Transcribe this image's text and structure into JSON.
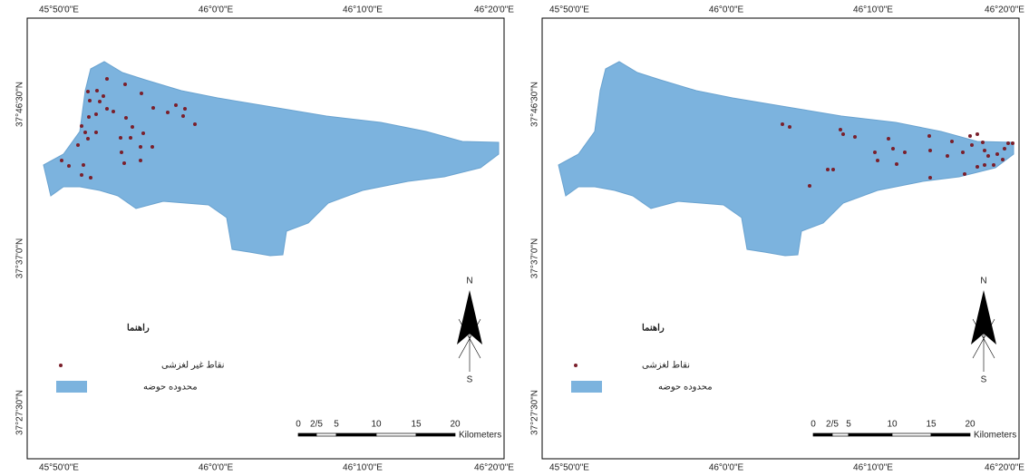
{
  "panels": [
    {
      "top_labels": [
        "45°50'0\"E",
        "46°0'0\"E",
        "46°10'0\"E",
        "46°20'0\"E"
      ],
      "bottom_labels": [
        "45°50'0\"E",
        "46°0'0\"E",
        "46°10'0\"E",
        "46°20'0\"E"
      ],
      "left_labels": [
        "37°46'30\"N",
        "37°37'0\"N",
        "37°27'30\"N"
      ],
      "legend": {
        "title": "راهنما",
        "points": "نقاط غیر لغزشی",
        "area": "محدوده حوضه"
      },
      "north": "N",
      "south": "S",
      "scale": {
        "ticks": [
          "0",
          "2/5",
          "5",
          "10",
          "15",
          "20"
        ],
        "unit": "Kilometers"
      }
    },
    {
      "top_labels": [
        "45°50'0\"E",
        "46°0'0\"E",
        "46°10'0\"E",
        "46°20'0\"E"
      ],
      "bottom_labels": [
        "45°50'0\"E",
        "46°0'0\"E",
        "46°10'0\"E",
        "46°20'0\"E"
      ],
      "left_labels": [
        "37°46'30\"N",
        "37°37'0\"N",
        "37°27'30\"N"
      ],
      "legend": {
        "title": "راهنما",
        "points": "نقاط لغزشی",
        "area": "محدوده حوضه"
      },
      "north": "N",
      "south": "S",
      "scale": {
        "ticks": [
          "0",
          "2/5",
          "5",
          "10",
          "15",
          "20"
        ],
        "unit": "Kilometers"
      }
    }
  ]
}
